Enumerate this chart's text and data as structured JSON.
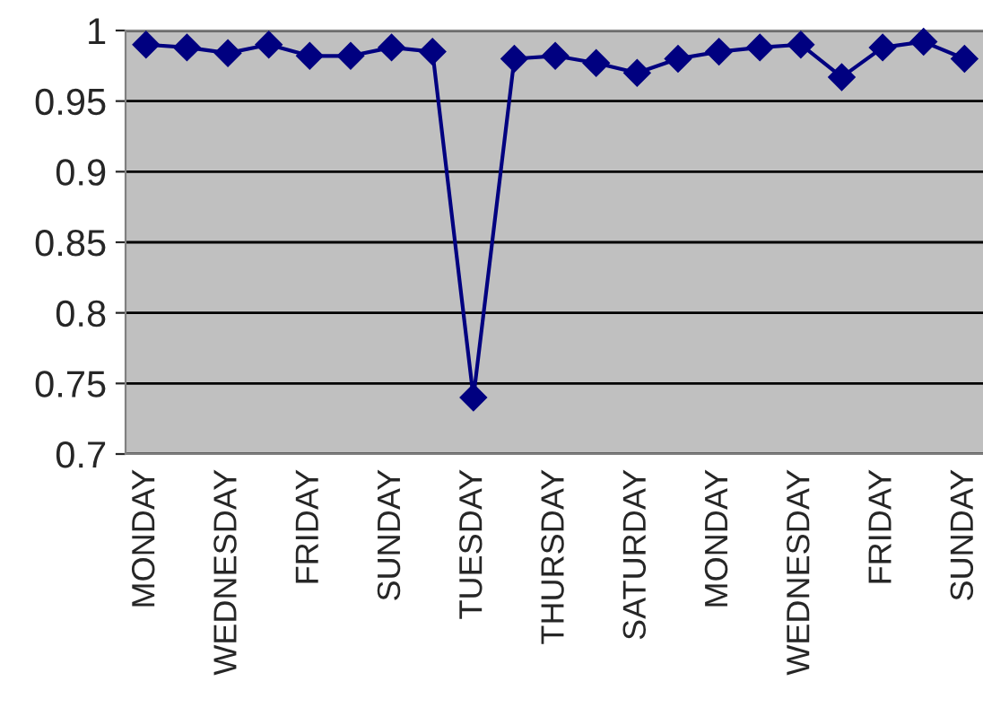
{
  "chart_data": {
    "type": "line",
    "categories": [
      "MONDAY",
      null,
      "WEDNESDAY",
      null,
      "FRIDAY",
      null,
      "SUNDAY",
      null,
      "TUESDAY",
      null,
      "THURSDAY",
      null,
      "SATURDAY",
      null,
      "MONDAY",
      null,
      "WEDNESDAY",
      null,
      "FRIDAY",
      null,
      "SUNDAY"
    ],
    "series": [
      {
        "color": "#000080",
        "values": [
          0.99,
          0.988,
          0.984,
          0.99,
          0.982,
          0.982,
          0.988,
          0.985,
          0.74,
          0.98,
          0.982,
          0.977,
          0.97,
          0.98,
          0.985,
          0.988,
          0.99,
          0.967,
          0.988,
          0.992,
          0.98
        ]
      }
    ],
    "ylim": [
      0.7,
      1
    ],
    "yticks": [
      0.7,
      0.75,
      0.8,
      0.85,
      0.9,
      0.95,
      1
    ],
    "grid": "y",
    "marker": "diamond",
    "line_style": "solid",
    "legend": false
  }
}
